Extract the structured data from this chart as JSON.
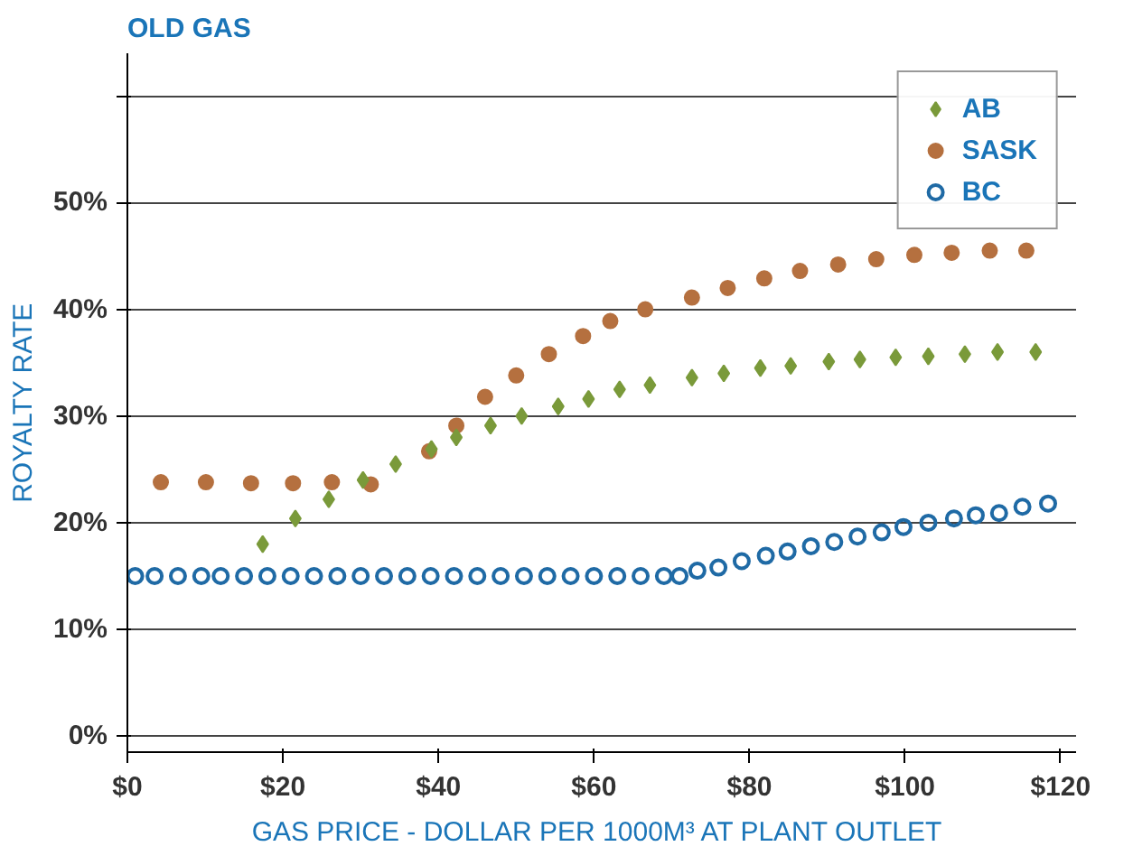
{
  "chart_data": {
    "type": "scatter",
    "title": "OLD GAS",
    "xlabel": "GAS PRICE - DOLLAR PER 1000M³  AT PLANT OUTLET",
    "ylabel": "ROYALTY RATE",
    "xlim": [
      0,
      122
    ],
    "ylim": [
      -1.5,
      64
    ],
    "xticks": [
      {
        "value": 0,
        "label": "$0"
      },
      {
        "value": 20,
        "label": "$20"
      },
      {
        "value": 40,
        "label": "$40"
      },
      {
        "value": 60,
        "label": "$60"
      },
      {
        "value": 80,
        "label": "$80"
      },
      {
        "value": 100,
        "label": "$100"
      },
      {
        "value": 120,
        "label": "$120"
      }
    ],
    "yticks": [
      {
        "value": 0,
        "label": "0%"
      },
      {
        "value": 10,
        "label": "10%"
      },
      {
        "value": 20,
        "label": "20%"
      },
      {
        "value": 30,
        "label": "30%"
      },
      {
        "value": 40,
        "label": "40%"
      },
      {
        "value": 50,
        "label": "50%"
      },
      {
        "value": 60,
        "label": null
      }
    ],
    "grid": "y",
    "legend": "top right",
    "series": [
      {
        "name": "AB",
        "color": "#7a9a3a",
        "marker": "diamond",
        "x": [
          17.4,
          21.6,
          25.9,
          30.3,
          34.5,
          39.1,
          42.3,
          46.7,
          50.7,
          55.4,
          59.3,
          63.3,
          67.2,
          72.6,
          76.7,
          81.4,
          85.3,
          90.2,
          94.2,
          98.8,
          103,
          107.7,
          111.9,
          116.8
        ],
        "values": [
          18,
          20.4,
          22.2,
          24,
          25.5,
          26.9,
          28,
          29.1,
          30,
          30.9,
          31.6,
          32.5,
          32.9,
          33.6,
          34,
          34.5,
          34.7,
          35.1,
          35.3,
          35.5,
          35.6,
          35.8,
          36,
          36
        ]
      },
      {
        "name": "SASK",
        "color": "#b5703f",
        "marker": "circle",
        "x": [
          4.3,
          10.1,
          15.9,
          21.3,
          26.3,
          31.3,
          38.8,
          42.3,
          46,
          50,
          54.2,
          58.6,
          62.1,
          66.6,
          72.6,
          77.2,
          81.9,
          86.5,
          91.4,
          96.3,
          101.2,
          106,
          110.9,
          115.6
        ],
        "values": [
          23.8,
          23.8,
          23.7,
          23.7,
          23.8,
          23.6,
          26.7,
          29.1,
          31.8,
          33.8,
          35.8,
          37.5,
          38.9,
          40,
          41.1,
          42,
          42.9,
          43.6,
          44.2,
          44.7,
          45.1,
          45.3,
          45.5,
          45.5
        ]
      },
      {
        "name": "BC",
        "color": "#1f6aa5",
        "marker": "circle",
        "x": [
          1,
          3.5,
          6.5,
          9.5,
          12,
          15,
          18,
          21,
          24,
          27,
          30,
          33,
          36,
          39,
          42,
          45,
          48,
          51,
          54,
          57,
          60,
          63,
          66,
          69,
          71,
          73.3,
          76,
          79,
          82.1,
          84.9,
          87.9,
          90.9,
          93.9,
          97,
          99.8,
          103,
          106.3,
          109.1,
          112.1,
          115.1,
          118.4
        ],
        "values": [
          15,
          15,
          15,
          15,
          15,
          15,
          15,
          15,
          15,
          15,
          15,
          15,
          15,
          15,
          15,
          15,
          15,
          15,
          15,
          15,
          15,
          15,
          15,
          15,
          15,
          15.5,
          15.8,
          16.4,
          16.9,
          17.3,
          17.8,
          18.2,
          18.7,
          19.1,
          19.6,
          20,
          20.4,
          20.7,
          20.9,
          21.5,
          21.8
        ]
      }
    ]
  }
}
